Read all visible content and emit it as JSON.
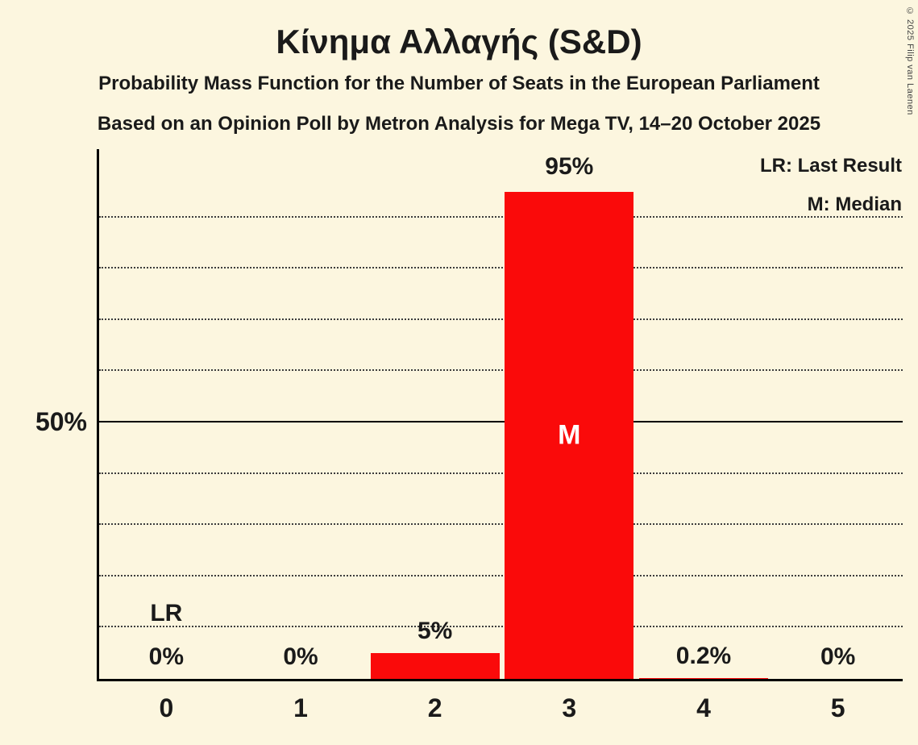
{
  "page": {
    "title": "Κίνημα Αλλαγής (S&D)",
    "subtitle1": "Probability Mass Function for the Number of Seats in the European Parliament",
    "subtitle2": "Based on an Opinion Poll by Metron Analysis for Mega TV, 14–20 October 2025",
    "copyright": "© 2025 Filip van Laenen"
  },
  "legend": {
    "lr": "LR: Last Result",
    "m": "M: Median"
  },
  "y_axis": {
    "label_50": "50%"
  },
  "chart_data": {
    "type": "bar",
    "title": "Κίνημα Αλλαγής (S&D)",
    "xlabel": "",
    "ylabel": "",
    "categories": [
      "0",
      "1",
      "2",
      "3",
      "4",
      "5"
    ],
    "values": [
      0,
      0,
      5,
      95,
      0.2,
      0
    ],
    "value_labels": [
      "0%",
      "0%",
      "5%",
      "95%",
      "0.2%",
      "0%"
    ],
    "median_category": "3",
    "median_marker": "M",
    "last_result_category": "0",
    "last_result_marker": "LR",
    "ylim": [
      0,
      100
    ],
    "gridlines_percent": [
      10,
      20,
      30,
      40,
      50,
      60,
      70,
      80,
      90
    ],
    "solid_line_percent": 50,
    "grid_on": true,
    "legend_position": "top-right",
    "bar_color": "#fa0a0a",
    "background_color": "#fcf6df",
    "text_color": "#1a1a1a"
  }
}
